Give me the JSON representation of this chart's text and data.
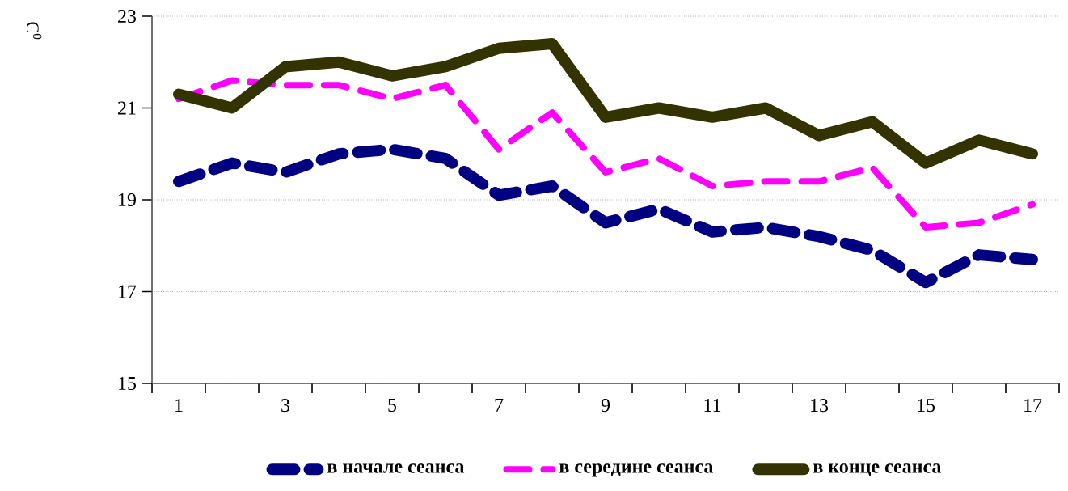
{
  "chart_data": {
    "type": "line",
    "ylabel": "C$^{0}$",
    "categories": [
      "1",
      null,
      "3",
      null,
      "5",
      null,
      "7",
      null,
      "9",
      null,
      "11",
      null,
      "13",
      null,
      "15",
      null,
      "17"
    ],
    "ylim": [
      15,
      23
    ],
    "yticks": [
      15,
      17,
      19,
      21,
      23
    ],
    "grid": "y",
    "legend": "bottom",
    "marker": "none",
    "series": [
      {
        "name": "в начале сеанса",
        "color": "#000080",
        "line_style": "dashed",
        "values": [
          19.4,
          19.8,
          19.6,
          20.0,
          20.1,
          19.9,
          19.1,
          19.3,
          18.5,
          18.8,
          18.3,
          18.4,
          18.2,
          17.9,
          17.2,
          17.8,
          17.7
        ]
      },
      {
        "name": "в середине сеанса",
        "color": "#ff00ff",
        "line_style": "dashed",
        "values": [
          21.2,
          21.6,
          21.5,
          21.5,
          21.2,
          21.5,
          20.1,
          20.9,
          19.6,
          19.9,
          19.3,
          19.4,
          19.4,
          19.7,
          18.4,
          18.5,
          18.9
        ]
      },
      {
        "name": "в конце сеанса",
        "color": "#333300",
        "line_style": "solid",
        "values": [
          21.3,
          21.0,
          21.9,
          22.0,
          21.7,
          21.9,
          22.3,
          22.4,
          20.8,
          21.0,
          20.8,
          21.0,
          20.4,
          20.7,
          19.8,
          20.3,
          20.0
        ]
      }
    ]
  }
}
